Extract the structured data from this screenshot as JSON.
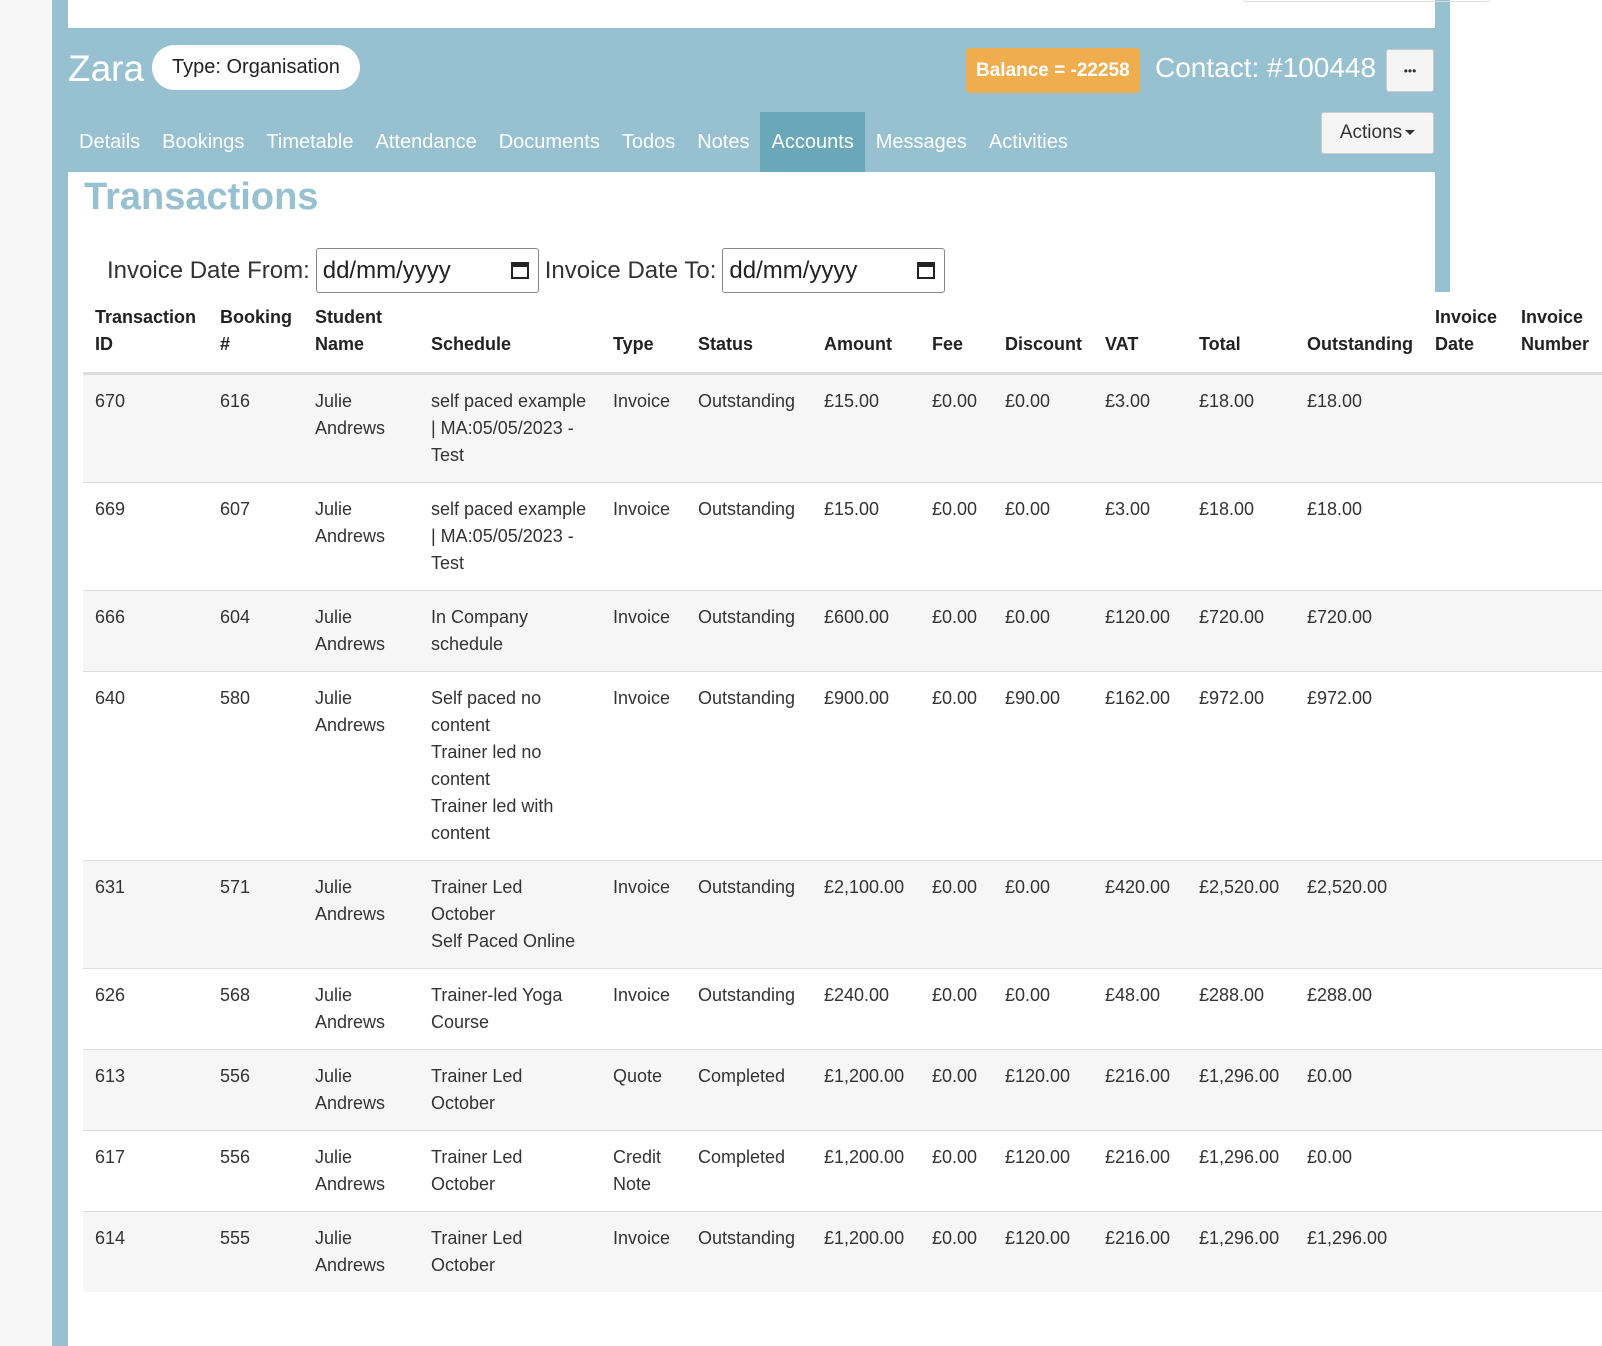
{
  "header": {
    "name": "Zara",
    "type": "Type: Organisation",
    "balance": "Balance = -22258",
    "contact": "Contact: #100448",
    "more": "•••",
    "actions": "Actions"
  },
  "tabs": [
    "Details",
    "Bookings",
    "Timetable",
    "Attendance",
    "Documents",
    "Todos",
    "Notes",
    "Accounts",
    "Messages",
    "Activities"
  ],
  "active_tab": 7,
  "section_title": "Transactions",
  "filters": {
    "from_label": "Invoice Date From:",
    "from_placeholder": "dd/mm/yyyy",
    "to_label": "Invoice Date To:",
    "to_placeholder": "dd/mm/yyyy"
  },
  "table": {
    "columns": [
      "Transaction ID",
      "Booking #",
      "Student Name",
      "Schedule",
      "Type",
      "Status",
      "Amount",
      "Fee",
      "Discount",
      "VAT",
      "Total",
      "Outstanding",
      "Invoice Date",
      "Invoice Number"
    ],
    "rows": [
      [
        "670",
        "616",
        "Julie Andrews",
        "self paced example | MA:05/05/2023 - Test",
        "Invoice",
        "Outstanding",
        "£15.00",
        "£0.00",
        "£0.00",
        "£3.00",
        "£18.00",
        "£18.00"
      ],
      [
        "669",
        "607",
        "Julie Andrews",
        "self paced example | MA:05/05/2023 - Test",
        "Invoice",
        "Outstanding",
        "£15.00",
        "£0.00",
        "£0.00",
        "£3.00",
        "£18.00",
        "£18.00"
      ],
      [
        "666",
        "604",
        "Julie Andrews",
        "In Company schedule",
        "Invoice",
        "Outstanding",
        "£600.00",
        "£0.00",
        "£0.00",
        "£120.00",
        "£720.00",
        "£720.00"
      ],
      [
        "640",
        "580",
        "Julie Andrews",
        "Self paced no content\nTrainer led no content\nTrainer led with content",
        "Invoice",
        "Outstanding",
        "£900.00",
        "£0.00",
        "£90.00",
        "£162.00",
        "£972.00",
        "£972.00"
      ],
      [
        "631",
        "571",
        "Julie Andrews",
        "Trainer Led October\nSelf Paced Online",
        "Invoice",
        "Outstanding",
        "£2,100.00",
        "£0.00",
        "£0.00",
        "£420.00",
        "£2,520.00",
        "£2,520.00"
      ],
      [
        "626",
        "568",
        "Julie Andrews",
        "Trainer-led Yoga Course",
        "Invoice",
        "Outstanding",
        "£240.00",
        "£0.00",
        "£0.00",
        "£48.00",
        "£288.00",
        "£288.00"
      ],
      [
        "613",
        "556",
        "Julie Andrews",
        "Trainer Led October",
        "Quote",
        "Completed",
        "£1,200.00",
        "£0.00",
        "£120.00",
        "£216.00",
        "£1,296.00",
        "£0.00"
      ],
      [
        "617",
        "556",
        "Julie Andrews",
        "Trainer Led October",
        "Credit Note",
        "Completed",
        "£1,200.00",
        "£0.00",
        "£120.00",
        "£216.00",
        "£1,296.00",
        "£0.00"
      ],
      [
        "614",
        "555",
        "Julie Andrews",
        "Trainer Led October",
        "Invoice",
        "Outstanding",
        "£1,200.00",
        "£0.00",
        "£120.00",
        "£216.00",
        "£1,296.00",
        "£1,296.00"
      ]
    ]
  }
}
